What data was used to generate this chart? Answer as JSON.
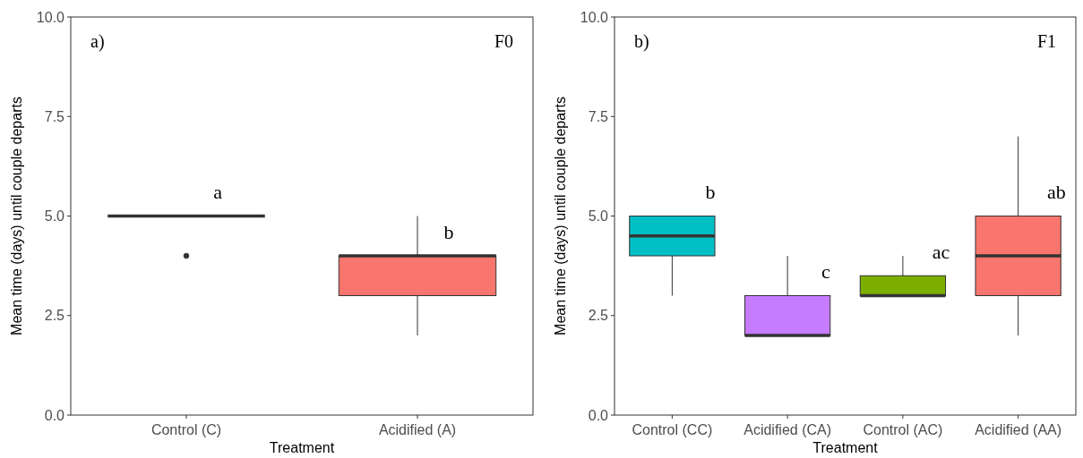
{
  "chart_data": [
    {
      "type": "box",
      "xlabel": "Treatment",
      "ylabel": "Mean time (days) until couple departs",
      "categories": [
        "Control (C)",
        "Acidified (A)"
      ],
      "colors": [
        "#333333",
        "#f8766d"
      ],
      "boxes": [
        {
          "low": 5,
          "q1": 5,
          "median": 5,
          "q3": 5,
          "high": 5,
          "outliers": [
            4
          ]
        },
        {
          "low": 2,
          "q1": 3,
          "median": 4,
          "q3": 4,
          "high": 5
        }
      ],
      "ylim": [
        0,
        10
      ],
      "yticks": [
        {
          "value": 0,
          "label": "0.0"
        },
        {
          "value": 2.5,
          "label": "2.5"
        },
        {
          "value": 5,
          "label": "5.0"
        },
        {
          "value": 7.5,
          "label": "7.5"
        },
        {
          "value": 10,
          "label": "10.0"
        }
      ],
      "grid": false,
      "annotations": [
        "a)",
        "F0",
        "a",
        "b"
      ]
    },
    {
      "type": "box",
      "xlabel": "Treatment",
      "ylabel": "Mean time (days) until couple departs",
      "categories": [
        "Control (CC)",
        "Acidified (CA)",
        "Control (AC)",
        "Acidified (AA)"
      ],
      "colors": [
        "#00bfc4",
        "#c77cff",
        "#7cae00",
        "#f8766d"
      ],
      "boxes": [
        {
          "low": 3,
          "q1": 4,
          "median": 4.5,
          "q3": 5,
          "high": 5
        },
        {
          "low": 2,
          "q1": 2,
          "median": 2,
          "q3": 3,
          "high": 4
        },
        {
          "low": 3,
          "q1": 3,
          "median": 3,
          "q3": 3.5,
          "high": 4
        },
        {
          "low": 2,
          "q1": 3,
          "median": 4,
          "q3": 5,
          "high": 7
        }
      ],
      "ylim": [
        0,
        10
      ],
      "yticks": [
        {
          "value": 0,
          "label": "0.0"
        },
        {
          "value": 2.5,
          "label": "2.5"
        },
        {
          "value": 5,
          "label": "5.0"
        },
        {
          "value": 7.5,
          "label": "7.5"
        },
        {
          "value": 10,
          "label": "10.0"
        }
      ],
      "grid": false,
      "annotations": [
        "b)",
        "F1",
        "b",
        "c",
        "ac",
        "ab"
      ]
    }
  ]
}
